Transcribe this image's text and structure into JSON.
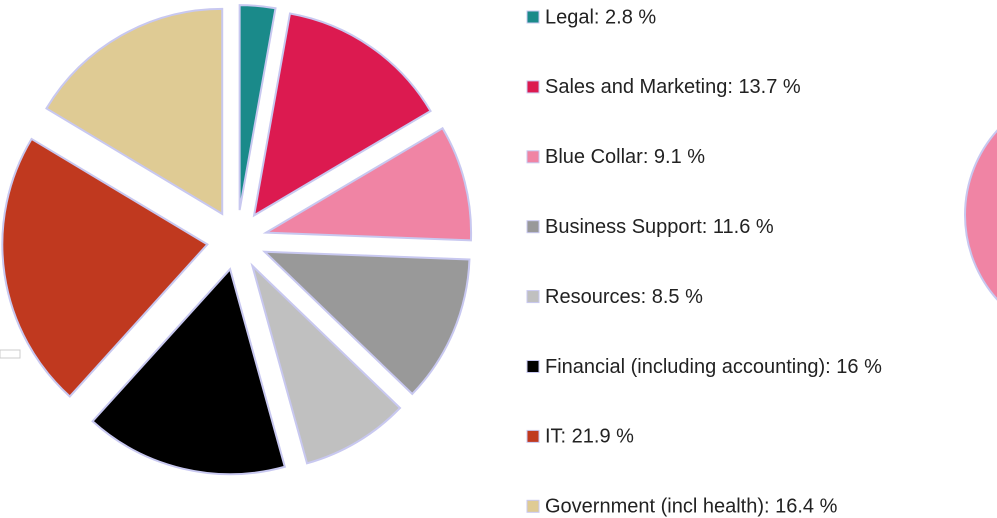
{
  "chart_data": {
    "type": "pie",
    "labels": [
      "Legal: 2.8 %",
      "Sales and Marketing: 13.7 %",
      "Blue Collar: 9.1 %",
      "Business Support: 11.6 %",
      "Resources: 8.5 %",
      "Financial (including accounting): 16 %",
      "IT: 21.9 %",
      "Government (incl health): 16.4 %"
    ],
    "values": [
      2.8,
      13.7,
      9.1,
      11.6,
      8.5,
      16,
      21.9,
      16.4
    ],
    "colors": [
      "#1a8a8a",
      "#dc1a50",
      "#f084a4",
      "#999999",
      "#c0c0c0",
      "#000000",
      "#c0391f",
      "#dfcb94"
    ],
    "legend": "right"
  }
}
